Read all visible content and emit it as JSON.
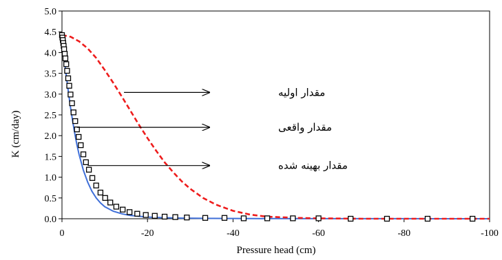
{
  "chart_data": {
    "type": "line",
    "xlabel": "Pressure head (cm)",
    "ylabel": "K (cm/day)",
    "xlim": [
      0,
      -100
    ],
    "ylim": [
      0,
      5.0
    ],
    "x_ticks": [
      0,
      -20,
      -40,
      -60,
      -80,
      -100
    ],
    "y_ticks": [
      0.0,
      0.5,
      1.0,
      1.5,
      2.0,
      2.5,
      3.0,
      3.5,
      4.0,
      4.5,
      5.0
    ],
    "grid": false,
    "series": [
      {
        "style": "dashed",
        "color": "#ee1c1c",
        "x": [
          0,
          -2,
          -4,
          -6,
          -8,
          -10,
          -12,
          -14,
          -16,
          -18,
          -20,
          -22,
          -24,
          -26,
          -28,
          -30,
          -33,
          -36,
          -40,
          -44,
          -48,
          -55,
          -60,
          -70,
          -80,
          -100
        ],
        "y": [
          4.42,
          4.38,
          4.27,
          4.1,
          3.87,
          3.58,
          3.27,
          2.94,
          2.6,
          2.26,
          1.94,
          1.64,
          1.36,
          1.12,
          0.9,
          0.72,
          0.5,
          0.34,
          0.19,
          0.1,
          0.05,
          0.02,
          0.01,
          0.0,
          0.0,
          0.0
        ]
      },
      {
        "style": "solid",
        "color": "#3f6fd8",
        "x": [
          0,
          -0.2,
          -0.5,
          -1,
          -1.5,
          -2,
          -2.5,
          -3,
          -3.5,
          -4,
          -5,
          -6,
          -7,
          -8,
          -9,
          -10,
          -12,
          -14,
          -16,
          -18,
          -20,
          -24,
          -28,
          -35,
          -45,
          -60,
          -80,
          -100
        ],
        "y": [
          4.4,
          4.2,
          3.9,
          3.45,
          3.05,
          2.68,
          2.35,
          2.05,
          1.78,
          1.55,
          1.17,
          0.88,
          0.66,
          0.5,
          0.38,
          0.29,
          0.18,
          0.12,
          0.08,
          0.06,
          0.04,
          0.025,
          0.015,
          0.008,
          0.004,
          0.002,
          0.001,
          0.0
        ]
      },
      {
        "style": "markers",
        "marker": "open-square",
        "color": "#000000",
        "x": [
          0,
          -0.1,
          -0.2,
          -0.3,
          -0.4,
          -0.5,
          -0.65,
          -0.8,
          -1.0,
          -1.2,
          -1.45,
          -1.7,
          -2.0,
          -2.35,
          -2.7,
          -3.1,
          -3.5,
          -3.9,
          -4.4,
          -5.0,
          -5.6,
          -6.3,
          -7.1,
          -8.0,
          -9.0,
          -10.1,
          -11.3,
          -12.7,
          -14.2,
          -15.8,
          -17.6,
          -19.6,
          -21.7,
          -24.0,
          -26.5,
          -29.2,
          -33.5,
          -38.0,
          -42.5,
          -48.0,
          -54.0,
          -60.0,
          -67.5,
          -76.0,
          -85.5,
          -96.0
        ],
        "y": [
          4.42,
          4.36,
          4.3,
          4.23,
          4.16,
          4.08,
          3.97,
          3.86,
          3.72,
          3.56,
          3.38,
          3.2,
          2.99,
          2.78,
          2.56,
          2.35,
          2.15,
          1.97,
          1.77,
          1.55,
          1.36,
          1.18,
          0.98,
          0.8,
          0.63,
          0.5,
          0.39,
          0.29,
          0.22,
          0.16,
          0.12,
          0.09,
          0.07,
          0.05,
          0.04,
          0.03,
          0.02,
          0.02,
          0.01,
          0.01,
          0.01,
          0.01,
          0.0,
          0.0,
          0.0,
          0.0
        ]
      }
    ],
    "annotations": [
      {
        "text": "مقدار اولیه",
        "x": -14.5,
        "y": 3.04,
        "arrow_to_x": -34.5
      },
      {
        "text": "مقدار واقعی",
        "x": -3.5,
        "y": 2.2,
        "arrow_to_x": -34.5
      },
      {
        "text": "مقدار بهینه شده",
        "x": -6,
        "y": 1.28,
        "arrow_to_x": -34.5
      }
    ]
  }
}
